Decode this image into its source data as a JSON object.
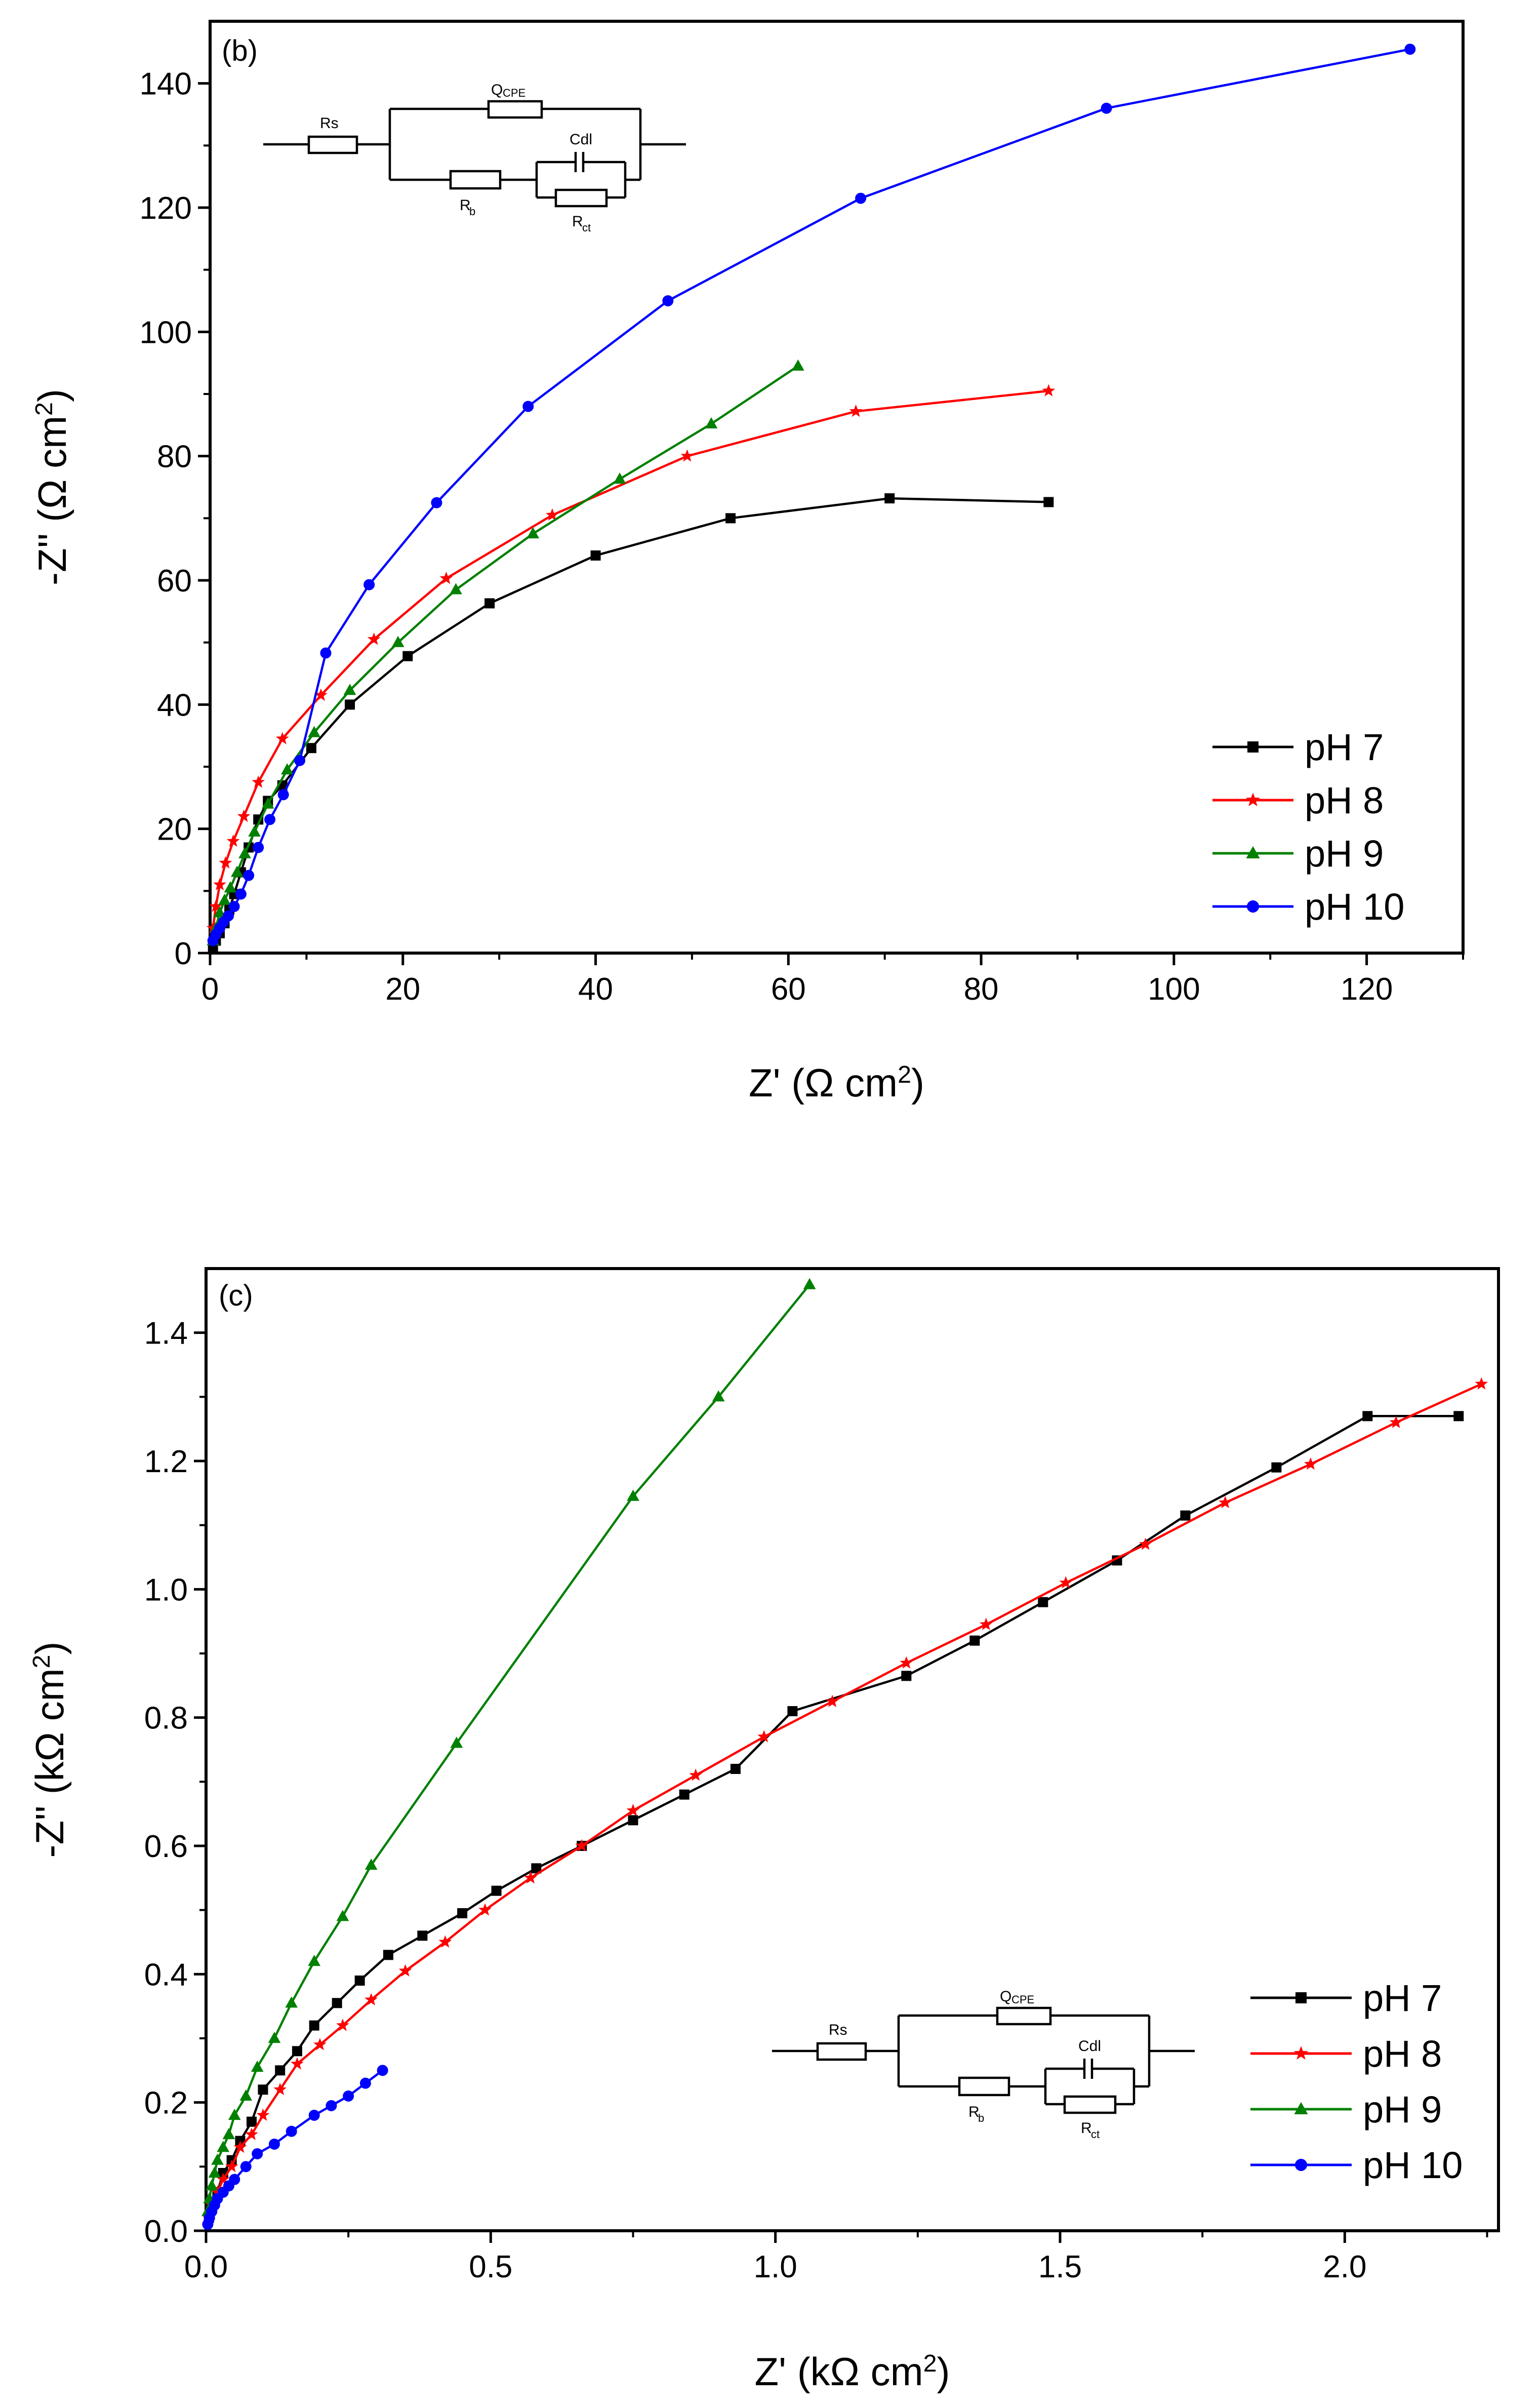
{
  "chart_data": [
    {
      "type": "line",
      "panel_label": "(b)",
      "xlabel": "Z' (Ω cm²)",
      "ylabel": "-Z'' (Ω cm²)",
      "xlabel_parts": {
        "main": "Z' (Ω cm",
        "sup": "2",
        "tail": ")"
      },
      "ylabel_parts": {
        "main": "-Z'' (Ω cm",
        "sup": "2",
        "tail": ")"
      },
      "xlim": [
        0,
        130
      ],
      "ylim": [
        0,
        150
      ],
      "xticks": [
        0,
        20,
        40,
        60,
        80,
        100,
        120
      ],
      "xtick_labels": [
        "0",
        "20",
        "40",
        "60",
        "80",
        "100",
        "120"
      ],
      "yticks": [
        0,
        20,
        40,
        60,
        80,
        100,
        120,
        140
      ],
      "ytick_labels": [
        "0",
        "20",
        "40",
        "60",
        "80",
        "100",
        "120",
        "140"
      ],
      "legend_position": "bottom-right",
      "series": [
        {
          "name": "pH 7",
          "color": "#000000",
          "marker": "square",
          "x": [
            0.3,
            0.6,
            1.0,
            1.5,
            2.0,
            2.5,
            3.2,
            4.0,
            5.0,
            6.0,
            7.5,
            10.5,
            14.5,
            20.5,
            29.0,
            40.0,
            54.0,
            70.5,
            87.0
          ],
          "y": [
            1.0,
            2.0,
            3.2,
            4.8,
            7.0,
            9.5,
            13.0,
            17.0,
            21.5,
            24.5,
            27.0,
            33.0,
            40.0,
            47.8,
            56.3,
            64.0,
            70.0,
            73.2,
            72.6
          ]
        },
        {
          "name": "pH 8",
          "color": "#ff0000",
          "marker": "star",
          "x": [
            0.3,
            0.6,
            1.0,
            1.6,
            2.4,
            3.5,
            5.0,
            7.5,
            11.5,
            17.0,
            24.5,
            35.5,
            49.5,
            67.0,
            87.0
          ],
          "y": [
            4.0,
            7.5,
            11.0,
            14.5,
            18.0,
            22.0,
            27.5,
            34.5,
            41.5,
            50.5,
            60.3,
            70.5,
            80.0,
            87.2,
            90.5
          ]
        },
        {
          "name": "pH 9",
          "color": "#008000",
          "marker": "triangle",
          "x": [
            0.3,
            0.6,
            1.0,
            1.5,
            2.1,
            2.8,
            3.6,
            4.6,
            6.0,
            8.0,
            10.8,
            14.5,
            19.5,
            25.5,
            33.5,
            42.5,
            52.0,
            61.0
          ],
          "y": [
            2.0,
            4.0,
            6.5,
            8.5,
            10.5,
            13.0,
            16.0,
            19.5,
            24.0,
            29.5,
            35.5,
            42.3,
            50.0,
            58.5,
            67.5,
            76.3,
            85.2,
            94.5
          ]
        },
        {
          "name": "pH 10",
          "color": "#0000ff",
          "marker": "circle",
          "x": [
            0.3,
            0.6,
            1.0,
            1.4,
            1.9,
            2.5,
            3.2,
            4.0,
            5.0,
            6.2,
            7.6,
            9.3,
            12.0,
            16.5,
            23.5,
            33.0,
            47.5,
            67.5,
            93.0,
            124.5
          ],
          "y": [
            2.0,
            3.0,
            4.0,
            5.0,
            6.0,
            7.5,
            9.5,
            12.5,
            17.0,
            21.5,
            25.5,
            31.0,
            48.3,
            59.3,
            72.5,
            88.0,
            105.0,
            121.5,
            136.0,
            145.5
          ]
        }
      ],
      "inset": {
        "labels": {
          "rs": "Rs",
          "qcpe": "Q",
          "qcpe_sub": "CPE",
          "cdl": "Cdl",
          "rb": "R",
          "rb_sub": "b",
          "rct": "R",
          "rct_sub": "ct"
        }
      }
    },
    {
      "type": "line",
      "panel_label": "(c)",
      "xlabel": "Z' (kΩ cm²)",
      "ylabel": "-Z'' (kΩ cm²)",
      "xlabel_parts": {
        "main": "Z' (kΩ cm",
        "sup": "2",
        "tail": ")"
      },
      "ylabel_parts": {
        "main": "-Z'' (kΩ cm",
        "sup": "2",
        "tail": ")"
      },
      "xlim": [
        0,
        2.27
      ],
      "ylim": [
        0,
        1.5
      ],
      "xticks": [
        0,
        0.5,
        1.0,
        1.5,
        2.0
      ],
      "xtick_labels": [
        "0.0",
        "0.5",
        "1.0",
        "1.5",
        "2.0"
      ],
      "yticks": [
        0,
        0.2,
        0.4,
        0.6,
        0.8,
        1.0,
        1.2,
        1.4
      ],
      "ytick_labels": [
        "0.0",
        "0.2",
        "0.4",
        "0.6",
        "0.8",
        "1.0",
        "1.2",
        "1.4"
      ],
      "legend_position": "bottom-right",
      "series": [
        {
          "name": "pH 7",
          "color": "#000000",
          "marker": "square",
          "x": [
            0.005,
            0.01,
            0.02,
            0.03,
            0.045,
            0.06,
            0.08,
            0.1,
            0.13,
            0.16,
            0.19,
            0.23,
            0.27,
            0.32,
            0.38,
            0.45,
            0.51,
            0.58,
            0.66,
            0.75,
            0.84,
            0.93,
            1.03,
            1.23,
            1.35,
            1.47,
            1.6,
            1.72,
            1.88,
            2.04,
            2.2
          ],
          "y": [
            0.02,
            0.04,
            0.06,
            0.09,
            0.11,
            0.14,
            0.17,
            0.22,
            0.25,
            0.28,
            0.32,
            0.355,
            0.39,
            0.43,
            0.46,
            0.495,
            0.53,
            0.565,
            0.6,
            0.64,
            0.68,
            0.72,
            0.81,
            0.865,
            0.92,
            0.98,
            1.045,
            1.115,
            1.19,
            1.27,
            1.27
          ]
        },
        {
          "name": "pH 8",
          "color": "#ff0000",
          "marker": "star",
          "x": [
            0.005,
            0.01,
            0.02,
            0.03,
            0.045,
            0.06,
            0.08,
            0.1,
            0.13,
            0.16,
            0.2,
            0.24,
            0.29,
            0.35,
            0.42,
            0.49,
            0.57,
            0.66,
            0.75,
            0.86,
            0.98,
            1.1,
            1.23,
            1.37,
            1.51,
            1.65,
            1.79,
            1.94,
            2.09,
            2.24
          ],
          "y": [
            0.02,
            0.04,
            0.06,
            0.08,
            0.1,
            0.13,
            0.15,
            0.18,
            0.22,
            0.26,
            0.29,
            0.32,
            0.36,
            0.405,
            0.45,
            0.5,
            0.55,
            0.6,
            0.655,
            0.71,
            0.77,
            0.825,
            0.885,
            0.945,
            1.01,
            1.07,
            1.135,
            1.195,
            1.26,
            1.32
          ]
        },
        {
          "name": "pH 9",
          "color": "#008000",
          "marker": "triangle",
          "x": [
            0.003,
            0.006,
            0.01,
            0.015,
            0.02,
            0.03,
            0.04,
            0.05,
            0.07,
            0.09,
            0.12,
            0.15,
            0.19,
            0.24,
            0.29,
            0.44,
            0.75,
            0.9,
            1.06
          ],
          "y": [
            0.03,
            0.05,
            0.07,
            0.09,
            0.11,
            0.13,
            0.15,
            0.18,
            0.21,
            0.255,
            0.3,
            0.355,
            0.42,
            0.49,
            0.57,
            0.76,
            1.145,
            1.3,
            1.475
          ]
        },
        {
          "name": "pH 10",
          "color": "#0000ff",
          "marker": "circle",
          "x": [
            0.003,
            0.006,
            0.01,
            0.015,
            0.02,
            0.03,
            0.04,
            0.05,
            0.07,
            0.09,
            0.12,
            0.15,
            0.19,
            0.22,
            0.25,
            0.28,
            0.31
          ],
          "y": [
            0.01,
            0.02,
            0.03,
            0.04,
            0.05,
            0.06,
            0.07,
            0.08,
            0.1,
            0.12,
            0.135,
            0.155,
            0.18,
            0.195,
            0.21,
            0.23,
            0.25
          ]
        }
      ],
      "inset": {
        "labels": {
          "rs": "Rs",
          "qcpe": "Q",
          "qcpe_sub": "CPE",
          "cdl": "Cdl",
          "rb": "R",
          "rb_sub": "b",
          "rct": "R",
          "rct_sub": "ct"
        }
      }
    }
  ]
}
